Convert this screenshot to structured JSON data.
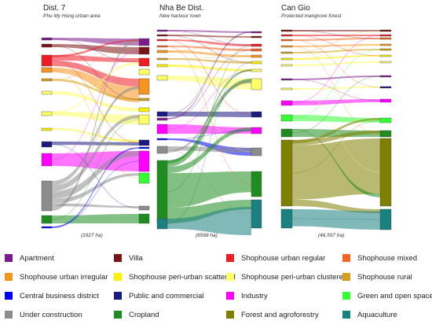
{
  "panels": [
    {
      "title": "Dist. 7",
      "subtitle": "Phu My Hung urban area",
      "area": "(1927 ha)"
    },
    {
      "title": "Nha Be Dist.",
      "subtitle": "New harbour town",
      "area": "(6568 ha)"
    },
    {
      "title": "Can Gio",
      "subtitle": "Protected mangrove forest",
      "area": "(46,597 ha)"
    }
  ],
  "legend": [
    {
      "label": "Apartment",
      "color": "#7B1A8C"
    },
    {
      "label": "Villa",
      "color": "#7A1414"
    },
    {
      "label": "Shophouse urban regular",
      "color": "#EE1C24"
    },
    {
      "label": "Shophouse mixed",
      "color": "#F26522"
    },
    {
      "label": "Shophouse urban irregular",
      "color": "#F7941D"
    },
    {
      "label": "Shophouse peri-urban scattered",
      "color": "#FFF200"
    },
    {
      "label": "Shophouse peri-urban clustered",
      "color": "#FFFF66"
    },
    {
      "label": "Shophouse rural",
      "color": "#D4A017"
    },
    {
      "label": "Central business district",
      "color": "#0000FF"
    },
    {
      "label": "Public and commercial",
      "color": "#1A1A80"
    },
    {
      "label": "Industry",
      "color": "#FF00FF"
    },
    {
      "label": "Green and open space",
      "color": "#33FF33"
    },
    {
      "label": "Under construction",
      "color": "#8C8C8C"
    },
    {
      "label": "Cropland",
      "color": "#1E8C1E"
    },
    {
      "label": "Forest and agroforestry",
      "color": "#808000"
    },
    {
      "label": "Aquaculture",
      "color": "#1A8080"
    }
  ]
}
